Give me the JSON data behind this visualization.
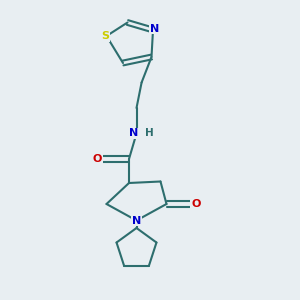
{
  "background_color": "#e8eef2",
  "bond_color": "#2d6e6e",
  "atom_colors": {
    "S": "#cccc00",
    "N": "#0000cc",
    "O": "#cc0000",
    "C": "#2d6e6e"
  },
  "bond_width": 1.5,
  "figsize": [
    3.0,
    3.0
  ],
  "dpi": 100,
  "xlim": [
    0,
    10
  ],
  "ylim": [
    0,
    10
  ]
}
